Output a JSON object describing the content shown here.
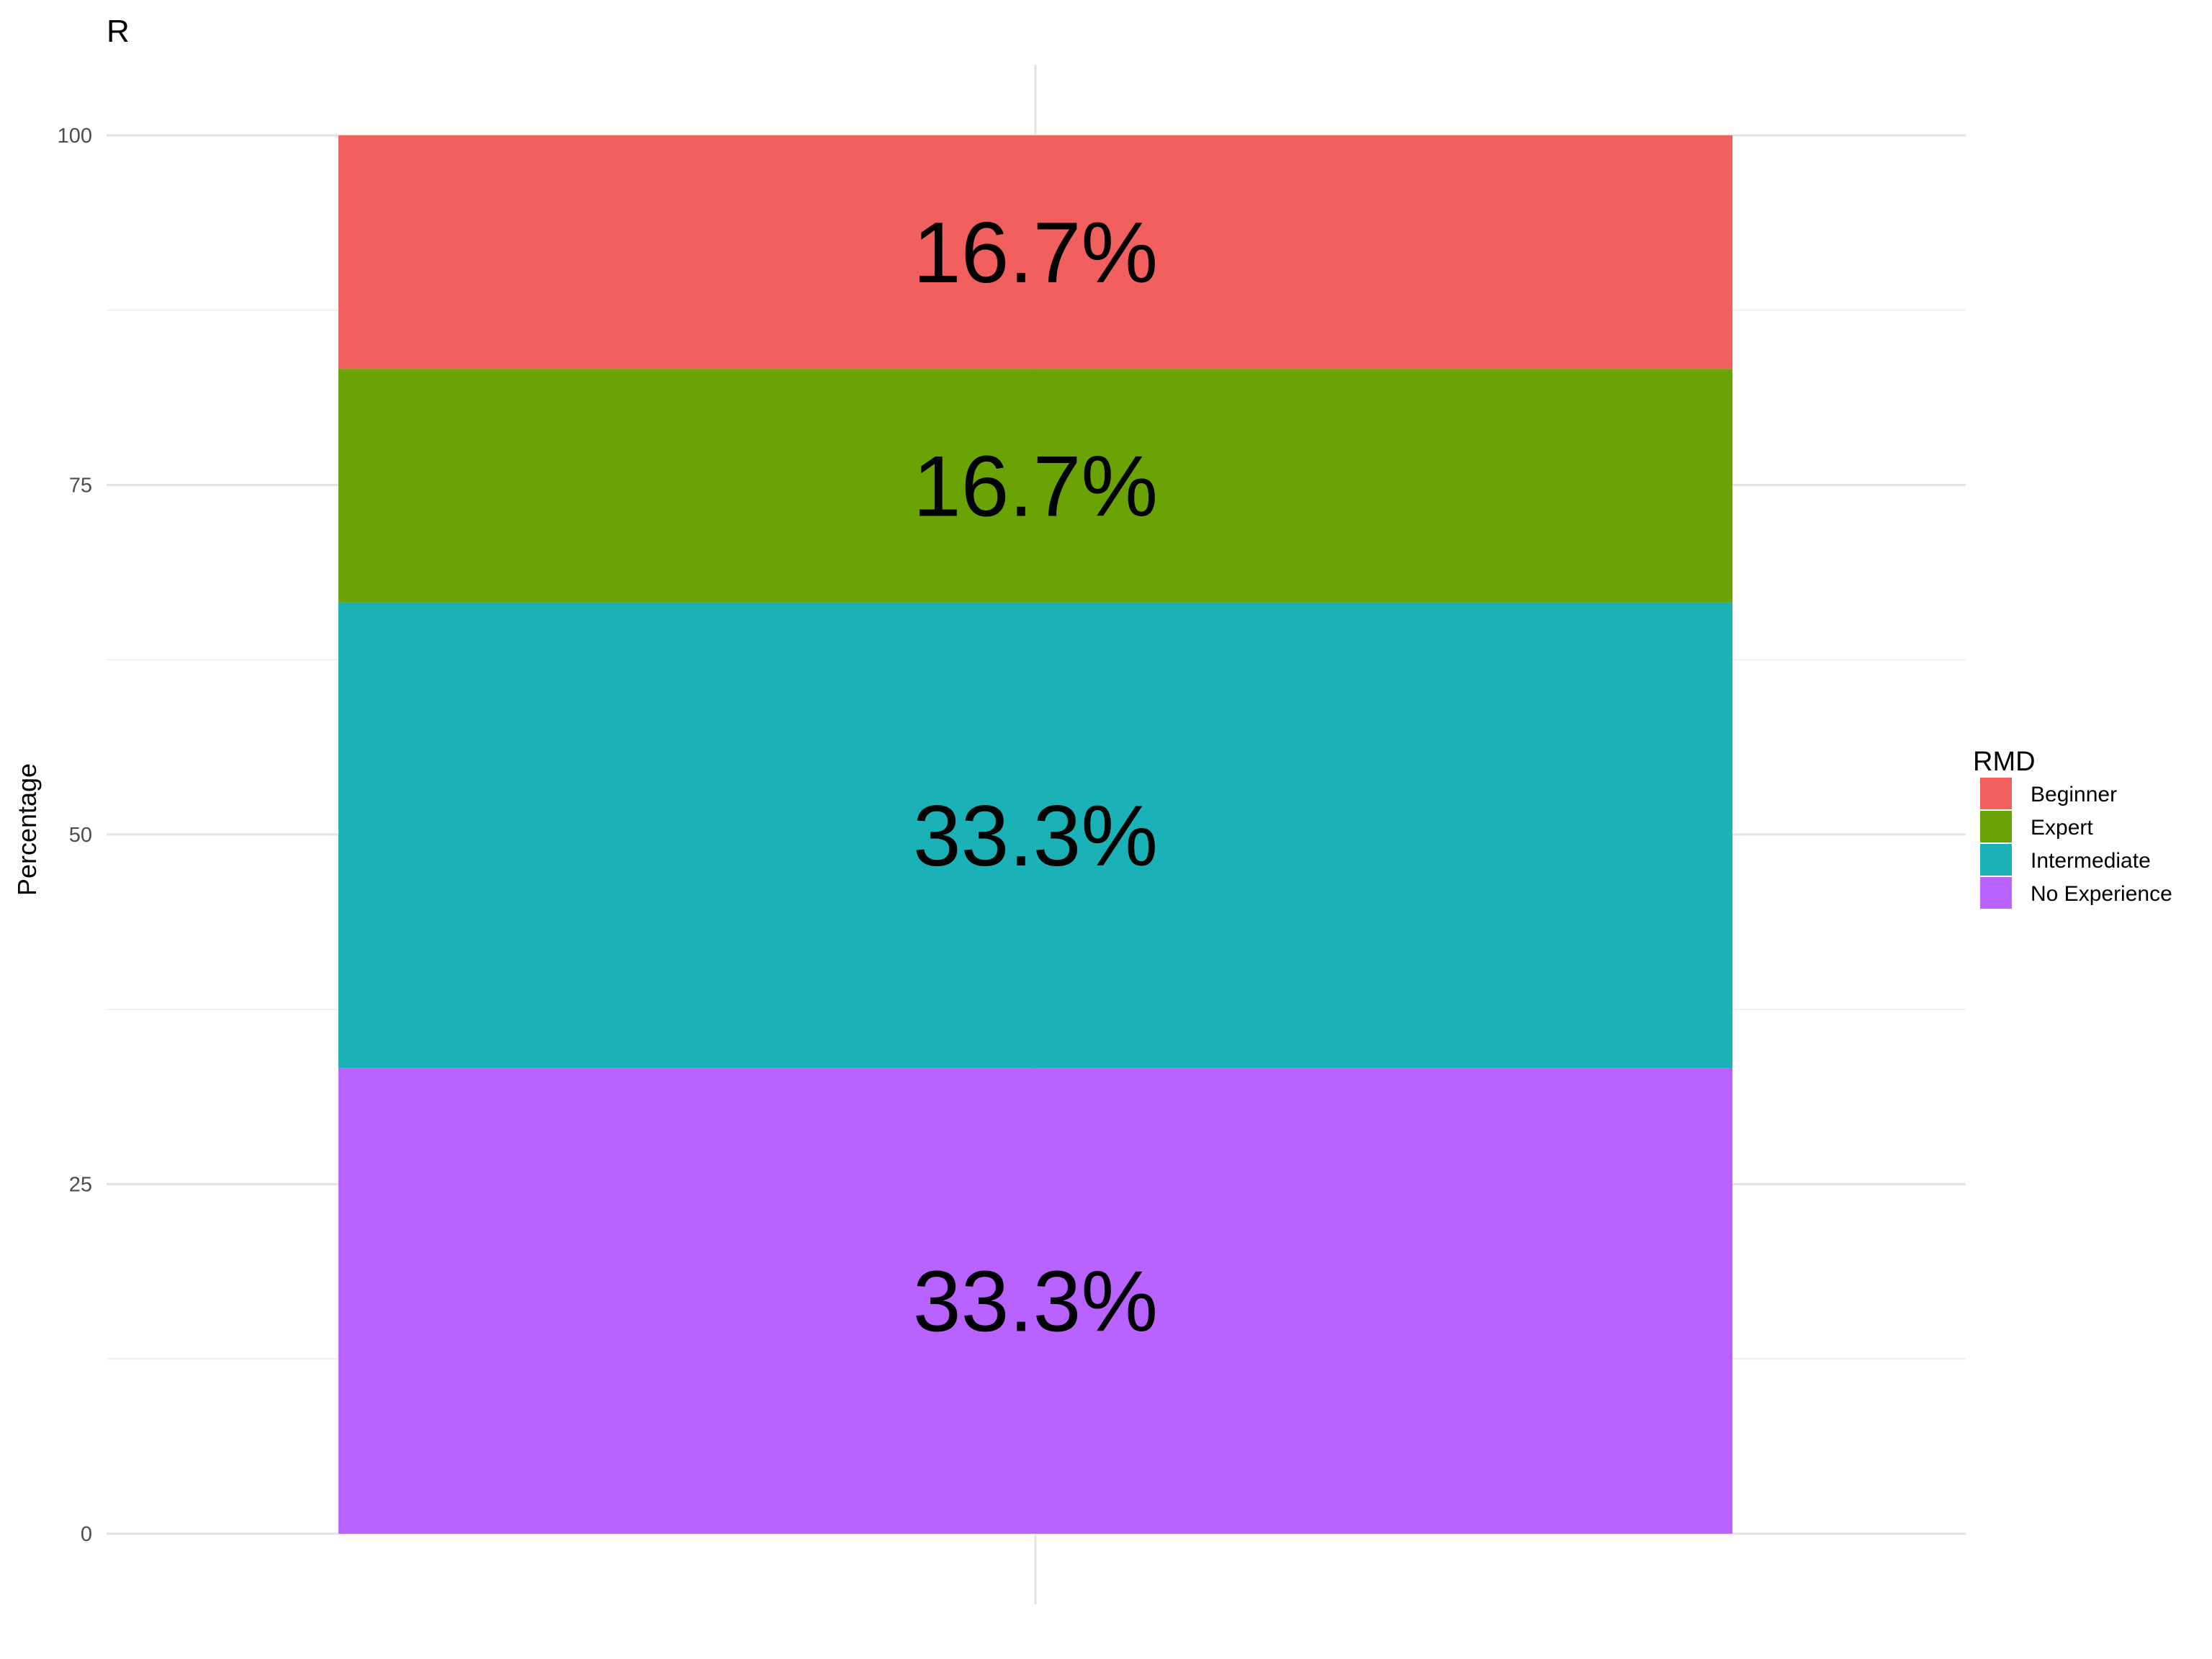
{
  "chart_data": {
    "type": "bar",
    "stacked": true,
    "title": "R",
    "xlabel": "",
    "ylabel": "Percentage",
    "ylim": [
      0,
      100
    ],
    "yticks": [
      0,
      25,
      50,
      75,
      100
    ],
    "categories": [
      ""
    ],
    "grid": true,
    "legend": {
      "title": "RMD",
      "position": "right",
      "items": [
        "Beginner",
        "Expert",
        "Intermediate",
        "No Experience"
      ]
    },
    "series": [
      {
        "name": "Beginner",
        "values": [
          16.7
        ],
        "label": "16.7%",
        "color": "#F1605E"
      },
      {
        "name": "Expert",
        "values": [
          16.7
        ],
        "label": "16.7%",
        "color": "#6BA304"
      },
      {
        "name": "Intermediate",
        "values": [
          33.3
        ],
        "label": "33.3%",
        "color": "#1AB2B7"
      },
      {
        "name": "No Experience",
        "values": [
          33.3
        ],
        "label": "33.3%",
        "color": "#B862FF"
      }
    ]
  }
}
